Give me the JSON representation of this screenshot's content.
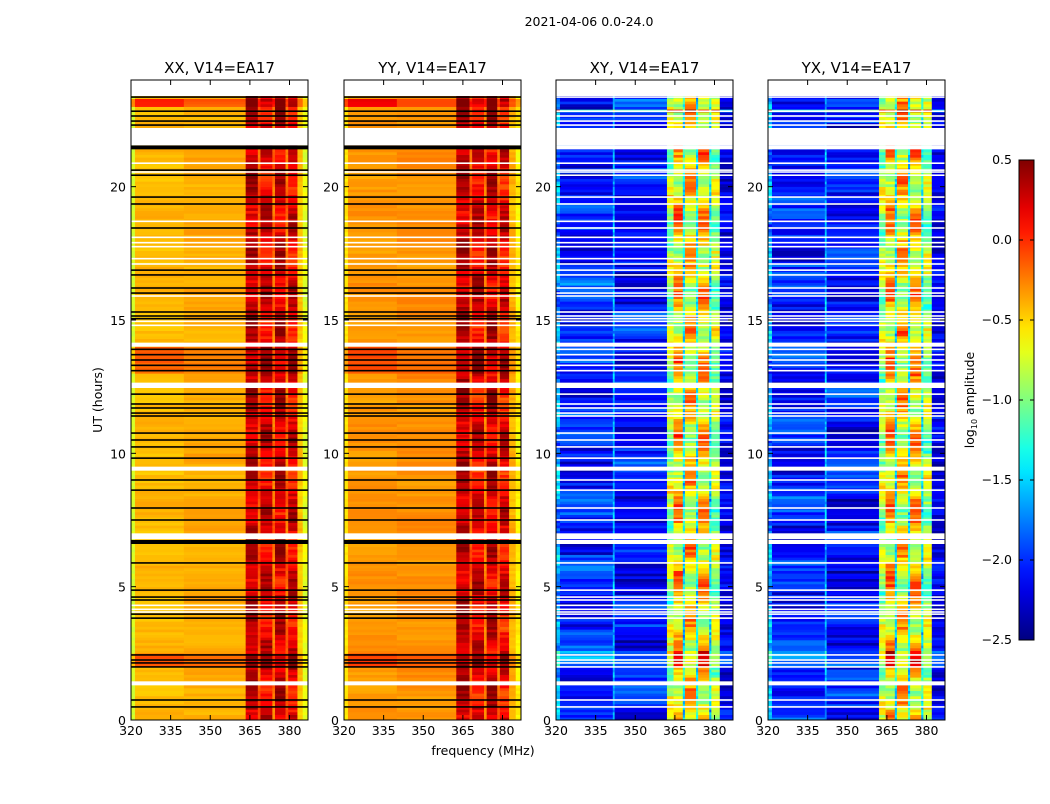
{
  "chart_data": {
    "type": "heatmap",
    "suptitle": "2021-04-06 0.0-24.0",
    "xlabel": "frequency (MHz)",
    "ylabel": "UT (hours)",
    "xlim": [
      320,
      387
    ],
    "ylim": [
      0,
      24
    ],
    "xticks": [
      320,
      335,
      350,
      365,
      380
    ],
    "yticks": [
      0,
      5,
      10,
      15,
      20
    ],
    "colorbar": {
      "label_main": "log",
      "label_sub": "10",
      "label_rest": " amplitude",
      "vmin": -2.5,
      "vmax": 0.5,
      "ticks": [
        0.5,
        0.0,
        -0.5,
        -1.0,
        -1.5,
        -2.0,
        -2.5
      ],
      "tick_labels": [
        "0.5",
        "0.0",
        "−0.5",
        "−1.0",
        "−1.5",
        "−2.0",
        "−2.5"
      ],
      "colormap": "jet"
    },
    "time_step_hours": 0.1,
    "white_gaps": [
      [
        23.4,
        24.0
      ],
      [
        21.55,
        22.2
      ],
      [
        14.0,
        14.15
      ],
      [
        12.45,
        12.65
      ],
      [
        9.35,
        9.5
      ],
      [
        6.78,
        7.0
      ],
      [
        1.3,
        1.45
      ]
    ],
    "thick_flag_rows": [
      [
        21.4,
        21.55
      ],
      [
        6.6,
        6.75
      ]
    ],
    "flagged_rows": [
      23.36,
      22.83,
      22.65,
      22.46,
      22.31,
      20.62,
      20.43,
      19.61,
      19.35,
      18.45,
      16.87,
      16.69,
      16.2,
      16.01,
      15.3,
      15.15,
      15.05,
      13.9,
      13.7,
      13.5,
      13.3,
      13.1,
      12.22,
      11.85,
      11.7,
      11.51,
      11.4,
      10.76,
      10.5,
      10.24,
      9.82,
      9.0,
      8.62,
      7.95,
      7.5,
      5.89,
      4.87,
      4.61,
      4.5,
      3.97,
      3.82,
      2.44,
      2.25,
      2.14,
      1.99,
      0.75,
      0.49
    ],
    "white_rows": [
      20.88,
      20.55,
      18.7,
      18.1,
      17.9,
      17.75,
      17.3,
      17.1,
      15.9,
      14.95,
      14.8,
      4.3,
      4.15,
      4.05
    ],
    "panels": [
      {
        "title": "XX, V14=EA17",
        "flag_color": "#000000",
        "noise": 0.08,
        "elevated_rows": [
          [
            23.0,
            23.3,
            0.5
          ],
          [
            13.0,
            14.0,
            0.25
          ],
          [
            2.0,
            2.5,
            0.3
          ]
        ],
        "bands": [
          {
            "f": [
              320,
              321.5
            ],
            "level": -0.75,
            "amp": 0.0
          },
          {
            "f": [
              321.5,
              340
            ],
            "level": -0.42,
            "amp": 0.03
          },
          {
            "f": [
              340,
              363.4
            ],
            "level": -0.38,
            "amp": 0.03
          },
          {
            "f": [
              363.4,
              368
            ],
            "level": 0.3,
            "amp": 0.15
          },
          {
            "f": [
              368,
              369
            ],
            "level": -0.15,
            "amp": 0.1
          },
          {
            "f": [
              369,
              373.5
            ],
            "level": 0.2,
            "amp": 0.2
          },
          {
            "f": [
              373.5,
              374.5
            ],
            "level": -0.2,
            "amp": 0.1
          },
          {
            "f": [
              374.5,
              378.5
            ],
            "level": 0.25,
            "amp": 0.2
          },
          {
            "f": [
              378.5,
              379.5
            ],
            "level": -0.2,
            "amp": 0.1
          },
          {
            "f": [
              379.5,
              383
            ],
            "level": 0.2,
            "amp": 0.2
          },
          {
            "f": [
              383,
              385
            ],
            "level": -0.45,
            "amp": 0.05
          },
          {
            "f": [
              385,
              387
            ],
            "level": -0.7,
            "amp": 0.05
          }
        ]
      },
      {
        "title": "YY, V14=EA17",
        "flag_color": "#000000",
        "noise": 0.08,
        "elevated_rows": [
          [
            23.0,
            23.3,
            0.5
          ],
          [
            13.0,
            14.0,
            0.2
          ],
          [
            2.0,
            2.5,
            0.25
          ]
        ],
        "bands": [
          {
            "f": [
              320,
              321.5
            ],
            "level": -0.55,
            "amp": 0.0
          },
          {
            "f": [
              321.5,
              340
            ],
            "level": -0.32,
            "amp": 0.03
          },
          {
            "f": [
              340,
              362.5
            ],
            "level": -0.3,
            "amp": 0.03
          },
          {
            "f": [
              362.5,
              367.5
            ],
            "level": 0.3,
            "amp": 0.15
          },
          {
            "f": [
              367.5,
              368.5
            ],
            "level": -0.15,
            "amp": 0.1
          },
          {
            "f": [
              368.5,
              373
            ],
            "level": 0.2,
            "amp": 0.2
          },
          {
            "f": [
              373,
              374
            ],
            "level": -0.2,
            "amp": 0.1
          },
          {
            "f": [
              374,
              378
            ],
            "level": 0.25,
            "amp": 0.2
          },
          {
            "f": [
              378,
              379
            ],
            "level": -0.2,
            "amp": 0.1
          },
          {
            "f": [
              379,
              382.5
            ],
            "level": 0.15,
            "amp": 0.2
          },
          {
            "f": [
              382.5,
              385
            ],
            "level": -0.4,
            "amp": 0.05
          },
          {
            "f": [
              385,
              387
            ],
            "level": -0.6,
            "amp": 0.05
          }
        ]
      },
      {
        "title": "XY, V14=EA17",
        "flag_color": "#ffffff",
        "noise": 0.35,
        "elevated_rows": [
          [
            22.85,
            22.95,
            1.8
          ],
          [
            2.0,
            2.6,
            0.6
          ]
        ],
        "bands": [
          {
            "f": [
              320,
              321.5
            ],
            "level": -1.7,
            "amp": 0.2
          },
          {
            "f": [
              321.5,
              341.5
            ],
            "level": -2.05,
            "amp": 0.15
          },
          {
            "f": [
              341.5,
              342.2
            ],
            "level": -1.6,
            "amp": 0.1
          },
          {
            "f": [
              342.2,
              362
            ],
            "level": -2.1,
            "amp": 0.15
          },
          {
            "f": [
              362,
              364.5
            ],
            "level": -0.9,
            "amp": 0.3
          },
          {
            "f": [
              364.5,
              368
            ],
            "level": -0.5,
            "amp": 0.4
          },
          {
            "f": [
              368,
              368.8
            ],
            "level": -1.4,
            "amp": 0.2
          },
          {
            "f": [
              368.8,
              373
            ],
            "level": -0.6,
            "amp": 0.4
          },
          {
            "f": [
              373,
              373.8
            ],
            "level": -1.4,
            "amp": 0.2
          },
          {
            "f": [
              373.8,
              378
            ],
            "level": -0.5,
            "amp": 0.4
          },
          {
            "f": [
              378,
              378.8
            ],
            "level": -1.4,
            "amp": 0.2
          },
          {
            "f": [
              378.8,
              382
            ],
            "level": -0.9,
            "amp": 0.3
          },
          {
            "f": [
              382,
              387
            ],
            "level": -2.2,
            "amp": 0.1
          }
        ]
      },
      {
        "title": "YX, V14=EA17",
        "flag_color": "#ffffff",
        "noise": 0.35,
        "elevated_rows": [
          [
            22.85,
            22.95,
            1.8
          ],
          [
            2.0,
            2.6,
            0.6
          ]
        ],
        "bands": [
          {
            "f": [
              320,
              321.5
            ],
            "level": -1.7,
            "amp": 0.2
          },
          {
            "f": [
              321.5,
              341.5
            ],
            "level": -2.05,
            "amp": 0.15
          },
          {
            "f": [
              341.5,
              342.2
            ],
            "level": -1.6,
            "amp": 0.1
          },
          {
            "f": [
              342.2,
              362
            ],
            "level": -2.1,
            "amp": 0.15
          },
          {
            "f": [
              362,
              364.5
            ],
            "level": -0.9,
            "amp": 0.3
          },
          {
            "f": [
              364.5,
              368
            ],
            "level": -0.5,
            "amp": 0.4
          },
          {
            "f": [
              368,
              368.8
            ],
            "level": -1.4,
            "amp": 0.2
          },
          {
            "f": [
              368.8,
              373
            ],
            "level": -0.6,
            "amp": 0.4
          },
          {
            "f": [
              373,
              373.8
            ],
            "level": -1.4,
            "amp": 0.2
          },
          {
            "f": [
              373.8,
              378
            ],
            "level": -0.5,
            "amp": 0.4
          },
          {
            "f": [
              378,
              378.8
            ],
            "level": -1.4,
            "amp": 0.2
          },
          {
            "f": [
              378.8,
              382
            ],
            "level": -0.9,
            "amp": 0.3
          },
          {
            "f": [
              382,
              387
            ],
            "level": -2.2,
            "amp": 0.1
          }
        ]
      }
    ]
  }
}
